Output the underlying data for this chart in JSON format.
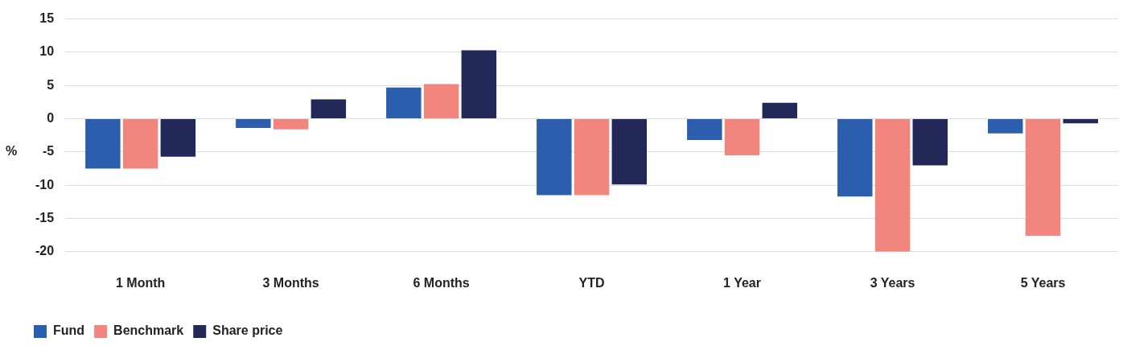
{
  "chart_data": {
    "type": "bar",
    "ylabel": "%",
    "categories": [
      "1 Month",
      "3 Months",
      "6 Months",
      "YTD",
      "1 Year",
      "3 Years",
      "5 Years"
    ],
    "series": [
      {
        "name": "Fund",
        "color": "#2b5fad",
        "values": [
          -7.5,
          -1.4,
          4.7,
          -11.5,
          -3.2,
          -11.7,
          -2.2
        ]
      },
      {
        "name": "Benchmark",
        "color": "#f2857e",
        "values": [
          -7.5,
          -1.6,
          5.2,
          -11.5,
          -5.5,
          -20,
          -17.6
        ]
      },
      {
        "name": "Share price",
        "color": "#222857",
        "values": [
          -5.7,
          2.9,
          10.3,
          -9.9,
          2.4,
          -7.0,
          -0.7
        ]
      }
    ],
    "ylim": [
      -20,
      15
    ],
    "yticks": [
      -20,
      -15,
      -10,
      -5,
      0,
      5,
      10,
      15
    ],
    "grid": "y",
    "legend": "bottom left"
  }
}
